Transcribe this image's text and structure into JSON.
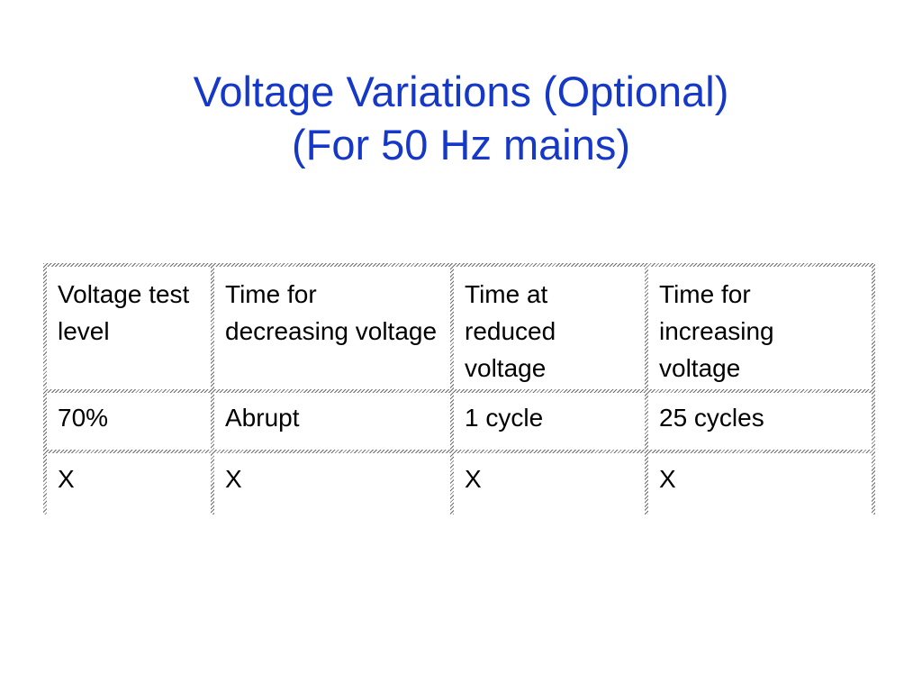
{
  "slide": {
    "title_line1": "Voltage Variations (Optional)",
    "title_line2": "(For 50 Hz mains)",
    "title_color": "#1538c8"
  },
  "table": {
    "headers": [
      "Voltage test level",
      "Time for decreasing voltage",
      "Time at reduced voltage",
      "Time for increasing voltage"
    ],
    "rows": [
      [
        "70%",
        "Abrupt",
        "1 cycle",
        "25 cycles"
      ],
      [
        "X",
        "X",
        "X",
        "X"
      ]
    ]
  }
}
